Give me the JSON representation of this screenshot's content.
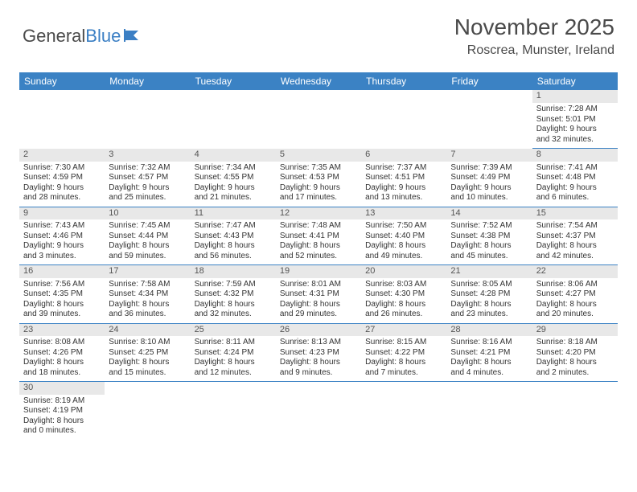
{
  "logo": {
    "text1": "General",
    "text2": "Blue"
  },
  "title": "November 2025",
  "location": "Roscrea, Munster, Ireland",
  "colors": {
    "header_bg": "#3b82c4",
    "header_text": "#ffffff",
    "logo_gray": "#4a4a4a",
    "logo_blue": "#3b7fc4",
    "daynum_bg": "#e8e8e8",
    "cell_border": "#3b82c4",
    "body_text": "#333333"
  },
  "weekdays": [
    "Sunday",
    "Monday",
    "Tuesday",
    "Wednesday",
    "Thursday",
    "Friday",
    "Saturday"
  ],
  "weeks": [
    [
      null,
      null,
      null,
      null,
      null,
      null,
      {
        "n": "1",
        "sr": "Sunrise: 7:28 AM",
        "ss": "Sunset: 5:01 PM",
        "d1": "Daylight: 9 hours",
        "d2": "and 32 minutes."
      }
    ],
    [
      {
        "n": "2",
        "sr": "Sunrise: 7:30 AM",
        "ss": "Sunset: 4:59 PM",
        "d1": "Daylight: 9 hours",
        "d2": "and 28 minutes."
      },
      {
        "n": "3",
        "sr": "Sunrise: 7:32 AM",
        "ss": "Sunset: 4:57 PM",
        "d1": "Daylight: 9 hours",
        "d2": "and 25 minutes."
      },
      {
        "n": "4",
        "sr": "Sunrise: 7:34 AM",
        "ss": "Sunset: 4:55 PM",
        "d1": "Daylight: 9 hours",
        "d2": "and 21 minutes."
      },
      {
        "n": "5",
        "sr": "Sunrise: 7:35 AM",
        "ss": "Sunset: 4:53 PM",
        "d1": "Daylight: 9 hours",
        "d2": "and 17 minutes."
      },
      {
        "n": "6",
        "sr": "Sunrise: 7:37 AM",
        "ss": "Sunset: 4:51 PM",
        "d1": "Daylight: 9 hours",
        "d2": "and 13 minutes."
      },
      {
        "n": "7",
        "sr": "Sunrise: 7:39 AM",
        "ss": "Sunset: 4:49 PM",
        "d1": "Daylight: 9 hours",
        "d2": "and 10 minutes."
      },
      {
        "n": "8",
        "sr": "Sunrise: 7:41 AM",
        "ss": "Sunset: 4:48 PM",
        "d1": "Daylight: 9 hours",
        "d2": "and 6 minutes."
      }
    ],
    [
      {
        "n": "9",
        "sr": "Sunrise: 7:43 AM",
        "ss": "Sunset: 4:46 PM",
        "d1": "Daylight: 9 hours",
        "d2": "and 3 minutes."
      },
      {
        "n": "10",
        "sr": "Sunrise: 7:45 AM",
        "ss": "Sunset: 4:44 PM",
        "d1": "Daylight: 8 hours",
        "d2": "and 59 minutes."
      },
      {
        "n": "11",
        "sr": "Sunrise: 7:47 AM",
        "ss": "Sunset: 4:43 PM",
        "d1": "Daylight: 8 hours",
        "d2": "and 56 minutes."
      },
      {
        "n": "12",
        "sr": "Sunrise: 7:48 AM",
        "ss": "Sunset: 4:41 PM",
        "d1": "Daylight: 8 hours",
        "d2": "and 52 minutes."
      },
      {
        "n": "13",
        "sr": "Sunrise: 7:50 AM",
        "ss": "Sunset: 4:40 PM",
        "d1": "Daylight: 8 hours",
        "d2": "and 49 minutes."
      },
      {
        "n": "14",
        "sr": "Sunrise: 7:52 AM",
        "ss": "Sunset: 4:38 PM",
        "d1": "Daylight: 8 hours",
        "d2": "and 45 minutes."
      },
      {
        "n": "15",
        "sr": "Sunrise: 7:54 AM",
        "ss": "Sunset: 4:37 PM",
        "d1": "Daylight: 8 hours",
        "d2": "and 42 minutes."
      }
    ],
    [
      {
        "n": "16",
        "sr": "Sunrise: 7:56 AM",
        "ss": "Sunset: 4:35 PM",
        "d1": "Daylight: 8 hours",
        "d2": "and 39 minutes."
      },
      {
        "n": "17",
        "sr": "Sunrise: 7:58 AM",
        "ss": "Sunset: 4:34 PM",
        "d1": "Daylight: 8 hours",
        "d2": "and 36 minutes."
      },
      {
        "n": "18",
        "sr": "Sunrise: 7:59 AM",
        "ss": "Sunset: 4:32 PM",
        "d1": "Daylight: 8 hours",
        "d2": "and 32 minutes."
      },
      {
        "n": "19",
        "sr": "Sunrise: 8:01 AM",
        "ss": "Sunset: 4:31 PM",
        "d1": "Daylight: 8 hours",
        "d2": "and 29 minutes."
      },
      {
        "n": "20",
        "sr": "Sunrise: 8:03 AM",
        "ss": "Sunset: 4:30 PM",
        "d1": "Daylight: 8 hours",
        "d2": "and 26 minutes."
      },
      {
        "n": "21",
        "sr": "Sunrise: 8:05 AM",
        "ss": "Sunset: 4:28 PM",
        "d1": "Daylight: 8 hours",
        "d2": "and 23 minutes."
      },
      {
        "n": "22",
        "sr": "Sunrise: 8:06 AM",
        "ss": "Sunset: 4:27 PM",
        "d1": "Daylight: 8 hours",
        "d2": "and 20 minutes."
      }
    ],
    [
      {
        "n": "23",
        "sr": "Sunrise: 8:08 AM",
        "ss": "Sunset: 4:26 PM",
        "d1": "Daylight: 8 hours",
        "d2": "and 18 minutes."
      },
      {
        "n": "24",
        "sr": "Sunrise: 8:10 AM",
        "ss": "Sunset: 4:25 PM",
        "d1": "Daylight: 8 hours",
        "d2": "and 15 minutes."
      },
      {
        "n": "25",
        "sr": "Sunrise: 8:11 AM",
        "ss": "Sunset: 4:24 PM",
        "d1": "Daylight: 8 hours",
        "d2": "and 12 minutes."
      },
      {
        "n": "26",
        "sr": "Sunrise: 8:13 AM",
        "ss": "Sunset: 4:23 PM",
        "d1": "Daylight: 8 hours",
        "d2": "and 9 minutes."
      },
      {
        "n": "27",
        "sr": "Sunrise: 8:15 AM",
        "ss": "Sunset: 4:22 PM",
        "d1": "Daylight: 8 hours",
        "d2": "and 7 minutes."
      },
      {
        "n": "28",
        "sr": "Sunrise: 8:16 AM",
        "ss": "Sunset: 4:21 PM",
        "d1": "Daylight: 8 hours",
        "d2": "and 4 minutes."
      },
      {
        "n": "29",
        "sr": "Sunrise: 8:18 AM",
        "ss": "Sunset: 4:20 PM",
        "d1": "Daylight: 8 hours",
        "d2": "and 2 minutes."
      }
    ],
    [
      {
        "n": "30",
        "sr": "Sunrise: 8:19 AM",
        "ss": "Sunset: 4:19 PM",
        "d1": "Daylight: 8 hours",
        "d2": "and 0 minutes."
      },
      null,
      null,
      null,
      null,
      null,
      null
    ]
  ]
}
